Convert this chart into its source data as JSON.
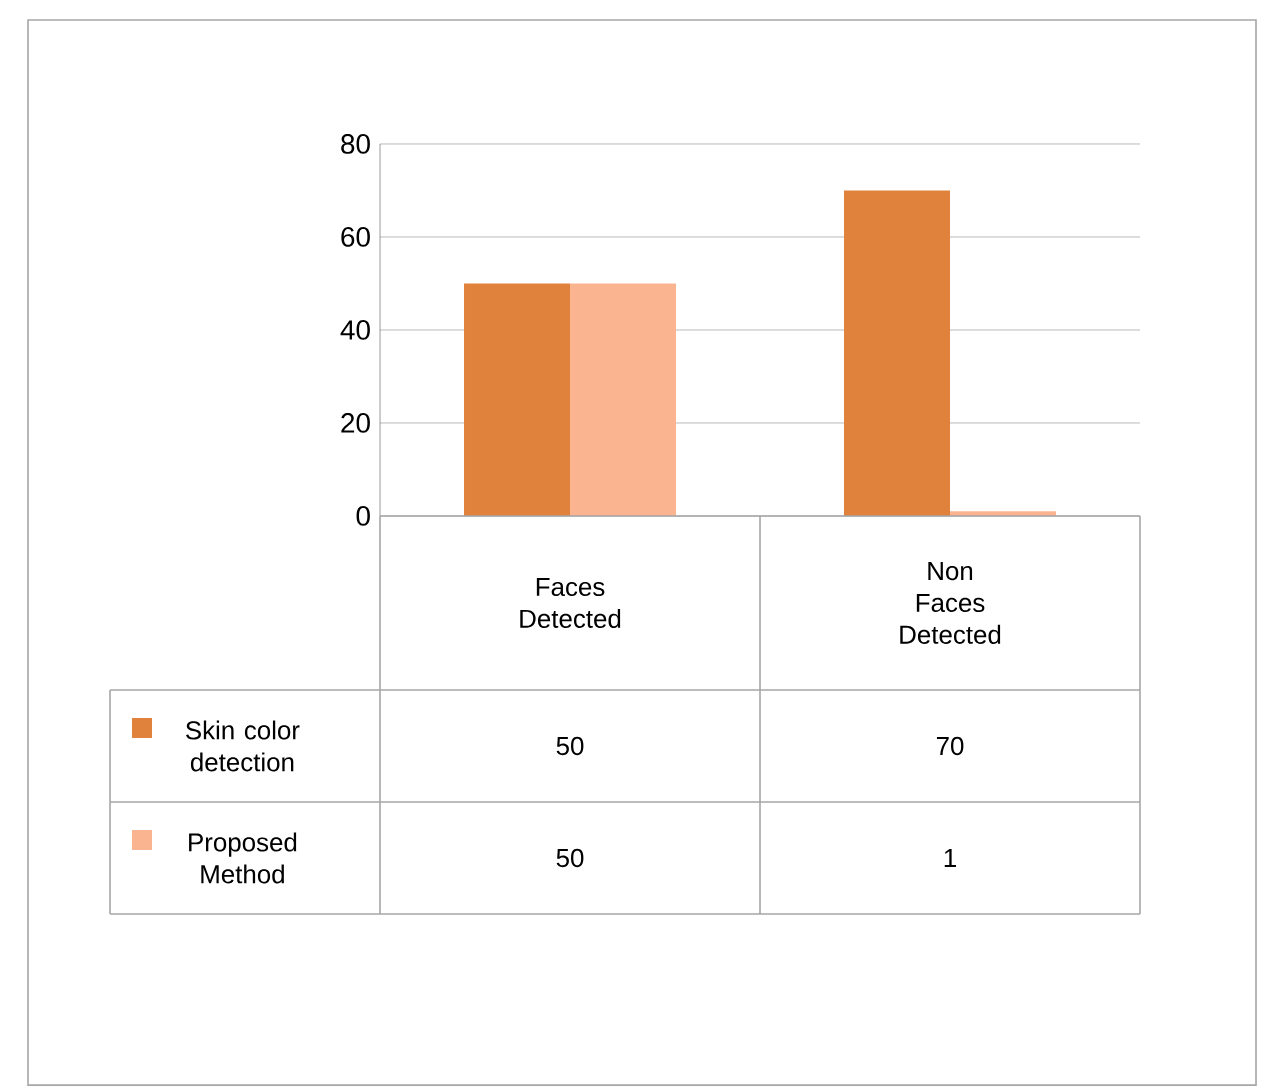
{
  "chart_data": {
    "type": "bar",
    "categories": [
      "Faces Detected",
      "Non Faces Detected"
    ],
    "series": [
      {
        "name": "Skin color detection",
        "color": "#e0813c",
        "values": [
          50,
          70
        ]
      },
      {
        "name": "Proposed Method",
        "color": "#fbb490",
        "values": [
          50,
          1
        ]
      }
    ],
    "ylim": [
      0,
      80
    ],
    "yticks": [
      0,
      20,
      40,
      60,
      80
    ],
    "grid": "y",
    "legend": "bottom left",
    "data_labels": true
  }
}
